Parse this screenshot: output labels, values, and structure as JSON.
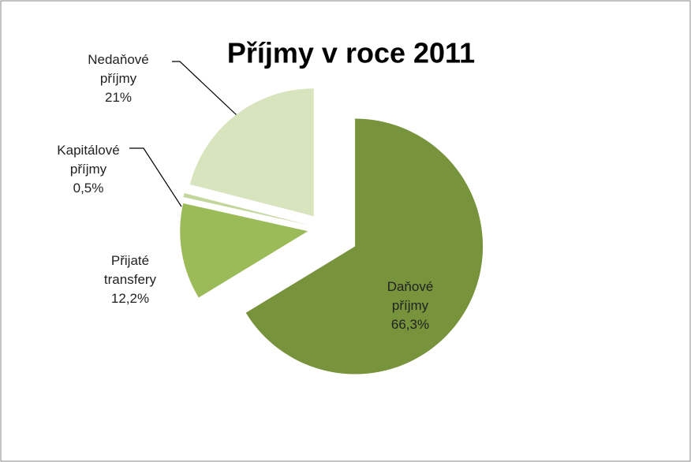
{
  "chart_data": {
    "type": "pie",
    "title": "Příjmy v roce 2011",
    "categories": [
      "Daňové příjmy",
      "Přijaté transfery",
      "Kapitálové příjmy",
      "Nedaňové příjmy"
    ],
    "values": [
      66.3,
      12.2,
      0.5,
      21
    ],
    "value_labels": [
      "66,3%",
      "12,2%",
      "0,5%",
      "21%"
    ],
    "colors": [
      "#77933c",
      "#9bbb59",
      "#c3d69b",
      "#d7e4bd"
    ]
  }
}
